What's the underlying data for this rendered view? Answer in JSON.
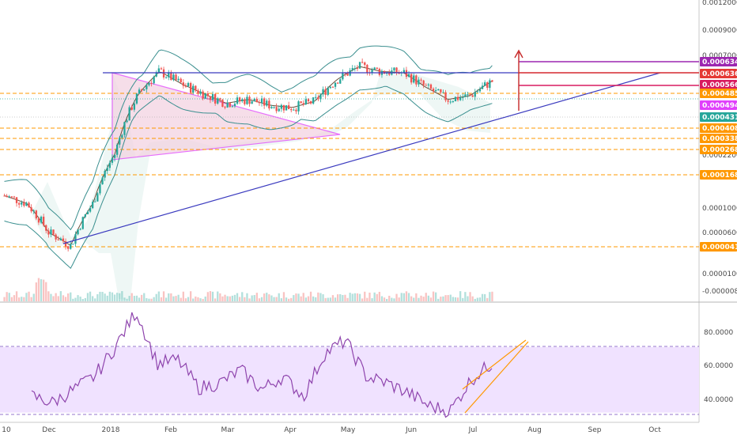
{
  "colors": {
    "up": "#26a69a",
    "down": "#ef5350",
    "bands": "#3a8f8f",
    "basis": "#6b4f3a",
    "triangle": "#e040fb",
    "triangle_fill": "#f3d3e2",
    "trendline": "#3b3bbf",
    "level_line": "#ff9800",
    "rsi_line": "#8e44ad",
    "rsi_band": "#f0e2ff",
    "wedge": "#ff9800",
    "target_arrow": "#c62828"
  },
  "chart_data": [
    {
      "type": "candlestick",
      "title": "",
      "y_scale": "log",
      "y_tick_labels": [
        "0.00120000",
        "0.00090000",
        "0.00070000",
        "0.00022000",
        "0.00010000",
        "0.00006000",
        "0.00001000",
        "-0.00000800"
      ],
      "x_tick_labels": [
        "10",
        "Dec",
        "2018",
        "Feb",
        "Mar",
        "Apr",
        "May",
        "Jun",
        "Jul",
        "Aug",
        "Sep",
        "Oct"
      ],
      "horizontal_levels": [
        {
          "label": "0.00063436",
          "style": "purple-solid",
          "color": "#9c27b0"
        },
        {
          "label": "0.00063612",
          "style": "red-solid",
          "color": "#e53935"
        },
        {
          "label": "0.00056681",
          "style": "magenta-solid",
          "color": "#d81b60"
        },
        {
          "label": "0.00048569",
          "style": "orange-dashed",
          "color": "#ff9800"
        },
        {
          "label": "0.00049463",
          "style": "current-price",
          "color": "#e040fb"
        },
        {
          "label": "0.00043158",
          "style": "bollinger-basis",
          "color": "#26a69a"
        },
        {
          "label": "0.00040881",
          "style": "orange-dashed",
          "color": "#ff9800"
        },
        {
          "label": "0.00033859",
          "style": "orange-dashed",
          "color": "#ff9800"
        },
        {
          "label": "0.00026837",
          "style": "orange-dashed",
          "color": "#ff9800"
        },
        {
          "label": "0.00016840",
          "style": "orange-dashed",
          "color": "#ff9800"
        },
        {
          "label": "0.00004105",
          "style": "orange-dashed",
          "color": "#ff9800"
        }
      ],
      "series": [
        {
          "type": "close",
          "x": [
            "Nov 10",
            "Nov 20",
            "Dec 1",
            "Dec 10",
            "Dec 20",
            "Jan 1",
            "Jan 5",
            "Jan 10",
            "Jan 20",
            "Feb 1",
            "Feb 15",
            "Mar 1",
            "Mar 15",
            "Apr 1",
            "Apr 15",
            "May 1",
            "May 10",
            "May 20",
            "Jun 1",
            "Jun 10",
            "Jun 20",
            "Jul 1",
            "Jul 10"
          ],
          "values": [
            0.0001,
            9e-05,
            6e-05,
            5e-05,
            9e-05,
            0.00018,
            0.0004,
            0.00056,
            0.00047,
            0.00041,
            0.00036,
            0.00038,
            0.00035,
            0.00034,
            0.00037,
            0.0005,
            0.0006,
            0.00056,
            0.00055,
            0.00045,
            0.00038,
            0.0004,
            0.00049
          ]
        }
      ]
    },
    {
      "type": "line",
      "title": "",
      "y_tick_labels": [
        "80.0000",
        "60.0000",
        "40.0000"
      ],
      "ylim": [
        25,
        95
      ],
      "band": [
        30,
        70
      ],
      "series": [
        {
          "x": [
            "Nov 20",
            "Dec 1",
            "Dec 10",
            "Dec 20",
            "Dec 30",
            "Jan 5",
            "Jan 12",
            "Jan 20",
            "Feb 1",
            "Feb 15",
            "Mar 1",
            "Mar 15",
            "Apr 1",
            "Apr 15",
            "May 1",
            "May 10",
            "May 20",
            "Jun 1",
            "Jun 10",
            "Jun 20",
            "Jun 25",
            "Jul 1",
            "Jul 10"
          ],
          "values": [
            40,
            36,
            44,
            52,
            70,
            92,
            60,
            62,
            45,
            48,
            56,
            44,
            52,
            40,
            66,
            74,
            52,
            48,
            42,
            34,
            31,
            50,
            60
          ]
        }
      ]
    }
  ]
}
